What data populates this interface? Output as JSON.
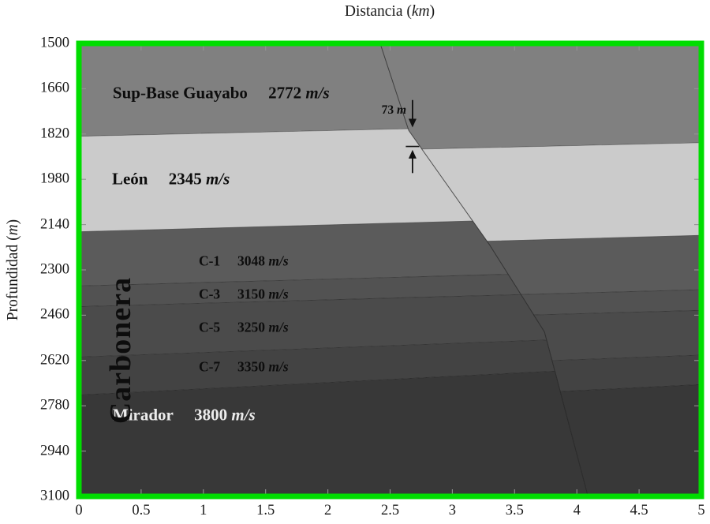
{
  "figure": {
    "x_axis": {
      "title_prefix": "Distancia (",
      "title_unit": "km",
      "title_suffix": ")",
      "ticks": [
        "0",
        "0.5",
        "1",
        "1.5",
        "2",
        "2.5",
        "3",
        "3.5",
        "4",
        "4.5",
        "5"
      ]
    },
    "y_axis": {
      "title_prefix": "Profundidad (",
      "title_unit": "m",
      "title_suffix": ")",
      "ticks": [
        "1500",
        "1660",
        "1820",
        "1980",
        "2140",
        "2300",
        "2460",
        "2620",
        "2780",
        "2940",
        "3100"
      ]
    },
    "frame_color": "#00dd00",
    "tick_color": "#949494"
  },
  "annotation": {
    "value": "73",
    "unit": "m",
    "x_km": 2.63,
    "depth_m": 1737
  },
  "chart_data": {
    "type": "area",
    "title": "",
    "xlabel": "Distancia (km)",
    "ylabel": "Profundidad (m)",
    "xlim": [
      0,
      5
    ],
    "ylim": [
      1500,
      3100
    ],
    "depth_increases_downward": true,
    "grid": false,
    "x_tick_step_km": 0.5,
    "y_tick_step_m": 160,
    "fault": {
      "throw_m": 73,
      "trace_km_depth": [
        [
          2.42,
          1500
        ],
        [
          2.65,
          1808
        ],
        [
          3.3,
          2212
        ],
        [
          3.74,
          2519
        ],
        [
          4.09,
          3100
        ]
      ]
    },
    "layers": [
      {
        "name": "Sup-Base Guayabo",
        "velocity": "2772",
        "velocity_m_s": 2772,
        "unit": "m/s",
        "color": "#808080",
        "base_depth_m_at_x0": 1828,
        "base_slope_m_per_km": -10,
        "label": {
          "x_km": 0.272,
          "depth_m": 1676,
          "size": "big",
          "color": "#0d0d0d"
        }
      },
      {
        "name": "León",
        "velocity": "2345",
        "velocity_m_s": 2345,
        "unit": "m/s",
        "color": "#cbcbcb",
        "base_depth_m_at_x0": 2165,
        "base_slope_m_per_km": -12,
        "label": {
          "x_km": 0.266,
          "depth_m": 1979,
          "size": "big",
          "color": "#0d0d0d"
        }
      },
      {
        "name": "C-1",
        "velocity": "3048",
        "velocity_m_s": 3048,
        "unit": "m/s",
        "group": "Carbonera",
        "color": "#5b5b5b",
        "base_depth_m_at_x0": 2357,
        "base_slope_m_per_km": -12,
        "label": {
          "x_km": 0.963,
          "depth_m": 2270,
          "size": "small",
          "color": "#0d0d0d"
        }
      },
      {
        "name": "C-3",
        "velocity": "3150",
        "velocity_m_s": 3150,
        "unit": "m/s",
        "group": "Carbonera",
        "color": "#525252",
        "base_depth_m_at_x0": 2430,
        "base_slope_m_per_km": -12,
        "label": {
          "x_km": 0.963,
          "depth_m": 2387,
          "size": "small",
          "color": "#0d0d0d"
        }
      },
      {
        "name": "C-5",
        "velocity": "3250",
        "velocity_m_s": 3250,
        "unit": "m/s",
        "group": "Carbonera",
        "color": "#4b4b4b",
        "base_depth_m_at_x0": 2608,
        "base_slope_m_per_km": -16,
        "label": {
          "x_km": 0.963,
          "depth_m": 2504,
          "size": "small",
          "color": "#0d0d0d"
        }
      },
      {
        "name": "C-7",
        "velocity": "3350",
        "velocity_m_s": 3350,
        "unit": "m/s",
        "group": "Carbonera",
        "color": "#434343",
        "base_depth_m_at_x0": 2742,
        "base_slope_m_per_km": -22,
        "label": {
          "x_km": 0.963,
          "depth_m": 2643,
          "size": "small",
          "color": "#0d0d0d"
        }
      },
      {
        "name": "Mirador",
        "velocity": "3800",
        "velocity_m_s": 3800,
        "unit": "m/s",
        "color": "#383838",
        "base_depth_m_at_x0": 3100,
        "base_slope_m_per_km": 0,
        "label": {
          "x_km": 0.272,
          "depth_m": 2813,
          "size": "big",
          "color": "#ececec"
        }
      }
    ],
    "group_label": {
      "text": "Carbonera",
      "x_km": 0.336,
      "depth_m": 2585,
      "applies_to": [
        "C-1",
        "C-3",
        "C-5",
        "C-7"
      ]
    },
    "gap_arrows": {
      "x_km": 2.68,
      "down_from_m": 1700,
      "down_to_m": 1797,
      "up_from_m": 1958,
      "up_to_m": 1876,
      "bar_at_m": 1864
    }
  }
}
